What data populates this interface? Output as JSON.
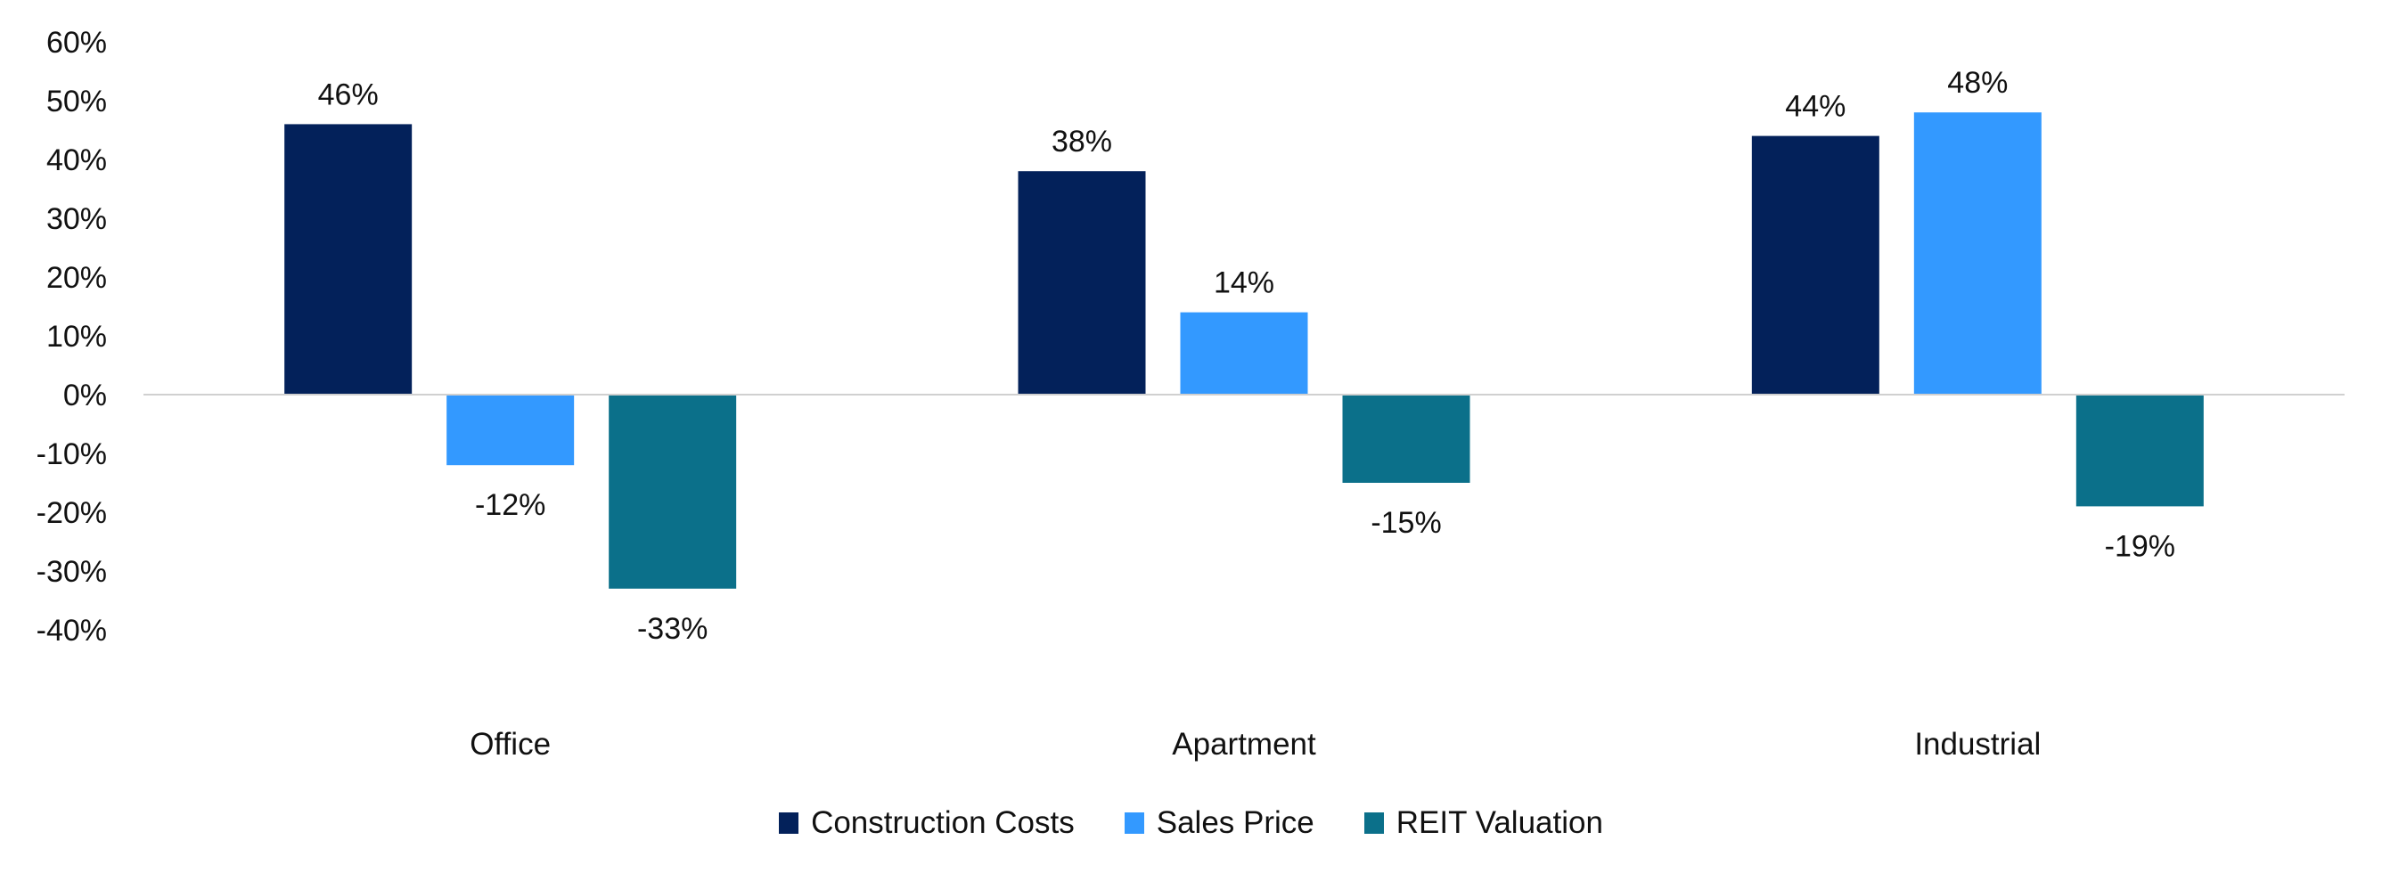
{
  "chart_data": {
    "type": "bar",
    "title": "",
    "xlabel": "",
    "ylabel": "",
    "categories": [
      "Office",
      "Apartment",
      "Industrial"
    ],
    "series": [
      {
        "name": "Construction Costs",
        "color": "#03215A",
        "values": [
          46,
          38,
          44
        ],
        "labels": [
          "46%",
          "38%",
          "44%"
        ]
      },
      {
        "name": "Sales Price",
        "color": "#3399FF",
        "values": [
          -12,
          14,
          48
        ],
        "labels": [
          "-12%",
          "14%",
          "48%"
        ]
      },
      {
        "name": "REIT Valuation",
        "color": "#0B708A",
        "values": [
          -33,
          -15,
          -19
        ],
        "labels": [
          "-33%",
          "-15%",
          "-19%"
        ]
      }
    ],
    "ylim": [
      -40,
      60
    ],
    "yticks": [
      60,
      50,
      40,
      30,
      20,
      10,
      0,
      -10,
      -20,
      -30,
      -40
    ],
    "ytick_labels": [
      "60%",
      "50%",
      "40%",
      "30%",
      "20%",
      "10%",
      "0%",
      "-10%",
      "-20%",
      "-30%",
      "-40%"
    ],
    "grid": false,
    "legend_position": "bottom"
  }
}
